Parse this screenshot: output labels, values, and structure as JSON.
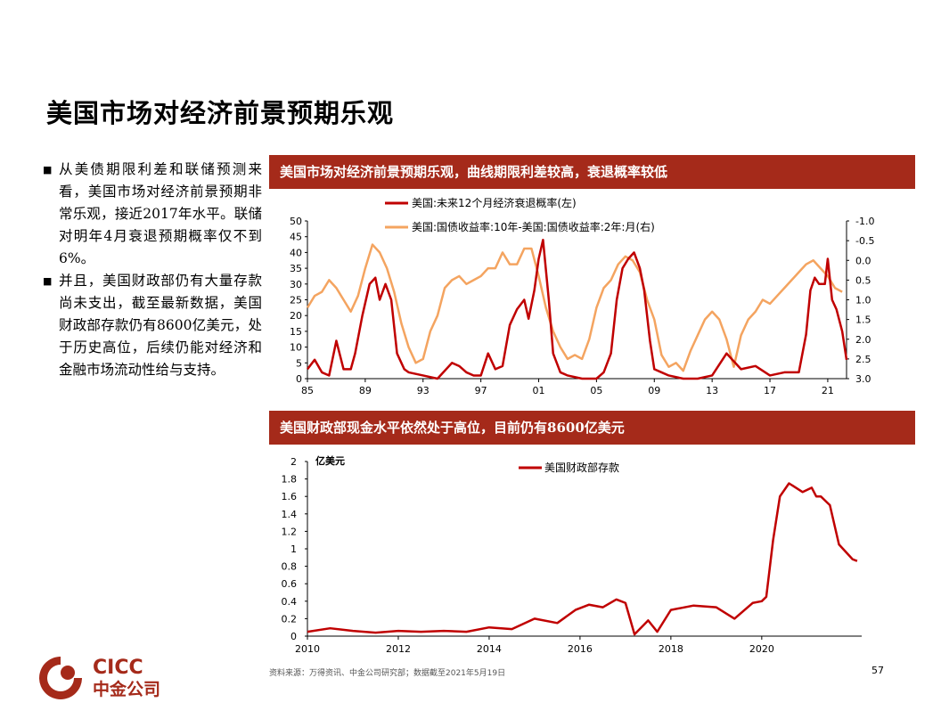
{
  "page": {
    "title": "美国市场对经济前景预期乐观",
    "bullets": [
      "从美债期限利差和联储预测来看，美国市场对经济前景预期非常乐观，接近2017年水平。联储对明年4月衰退预期概率仅不到6%。",
      "并且，美国财政部仍有大量存款尚未支出，截至最新数据，美国财政部存款仍有8600亿美元，处于历史高位，后续仍能对经济和金融市场流动性给与支持。"
    ],
    "bullet_mark": "■",
    "source": "资料来源：万得资讯、中金公司研究部；数据截至2021年5月19日",
    "page_number": "57",
    "logo": {
      "text_en": "CICC",
      "text_cn": "中金公司"
    },
    "colors": {
      "header_bg": "#a52a1a",
      "dark_red": "#c00000",
      "orange": "#f4a460"
    }
  },
  "chart_data": [
    {
      "type": "line",
      "title": "美国市场对经济前景预期乐观，曲线期限利差较高，衰退概率较低",
      "x_tick_labels": [
        "85",
        "89",
        "93",
        "97",
        "01",
        "05",
        "09",
        "13",
        "17",
        "21"
      ],
      "x_ticks_year": [
        1985,
        1989,
        1993,
        1997,
        2001,
        2005,
        2009,
        2013,
        2017,
        2021
      ],
      "xlim": [
        1985,
        2022.3
      ],
      "ylim_left": [
        0,
        50
      ],
      "y_left_ticks": [
        0,
        5,
        10,
        15,
        20,
        25,
        30,
        35,
        40,
        45,
        50
      ],
      "ylim_right": [
        3.0,
        -1.0
      ],
      "y_right_ticks": [
        "-1.0",
        "-0.5",
        "0.0",
        "0.5",
        "1.0",
        "1.5",
        "2.0",
        "2.5",
        "3.0"
      ],
      "y_right_tick_values": [
        -1.0,
        -0.5,
        0.0,
        0.5,
        1.0,
        1.5,
        2.0,
        2.5,
        3.0
      ],
      "series": [
        {
          "name": "美国:未来12个月经济衰退概率(左)",
          "axis": "left",
          "color": "#c00000",
          "x": [
            1985,
            1985.5,
            1986,
            1986.5,
            1987,
            1987.5,
            1988,
            1988.3,
            1988.8,
            1989.3,
            1989.7,
            1990,
            1990.4,
            1990.8,
            1991.2,
            1991.7,
            1992,
            1993,
            1994,
            1995,
            1995.5,
            1996,
            1996.5,
            1997,
            1997.5,
            1998,
            1998.5,
            1999,
            1999.5,
            2000,
            2000.3,
            2000.7,
            2001,
            2001.3,
            2001.7,
            2002,
            2002.5,
            2003,
            2004,
            2005,
            2005.5,
            2006,
            2006.4,
            2006.8,
            2007.2,
            2007.6,
            2008,
            2008.3,
            2008.7,
            2009,
            2009.5,
            2010,
            2011,
            2012,
            2013,
            2014,
            2015,
            2016,
            2017,
            2018,
            2019,
            2019.5,
            2019.8,
            2020.1,
            2020.4,
            2020.8,
            2021,
            2021.3,
            2021.6,
            2022,
            2022.3
          ],
          "values": [
            3,
            6,
            2,
            1,
            12,
            3,
            3,
            8,
            20,
            30,
            32,
            25,
            30,
            25,
            8,
            3,
            2,
            1,
            0,
            5,
            4,
            2,
            1,
            1,
            8,
            3,
            4,
            17,
            22,
            25,
            19,
            28,
            38,
            44,
            25,
            8,
            2,
            1,
            0,
            0,
            2,
            8,
            25,
            35,
            38,
            40,
            35,
            28,
            12,
            3,
            2,
            1,
            0,
            0,
            1,
            8,
            3,
            4,
            1,
            2,
            2,
            14,
            28,
            32,
            30,
            30,
            38,
            25,
            22,
            15,
            6
          ]
        },
        {
          "name": "美国:国债收益率:10年-美国:国债收益率:2年:月(右)",
          "axis": "right",
          "color": "#f4a460",
          "x": [
            1985,
            1985.5,
            1986,
            1986.5,
            1987,
            1987.5,
            1988,
            1988.5,
            1989,
            1989.5,
            1990,
            1990.5,
            1991,
            1991.5,
            1992,
            1992.5,
            1993,
            1993.5,
            1994,
            1994.5,
            1995,
            1995.5,
            1996,
            1996.5,
            1997,
            1997.5,
            1998,
            1998.5,
            1999,
            1999.5,
            2000,
            2000.5,
            2001,
            2001.5,
            2002,
            2002.5,
            2003,
            2003.5,
            2004,
            2004.5,
            2005,
            2005.5,
            2006,
            2006.5,
            2007,
            2007.5,
            2008,
            2008.5,
            2009,
            2009.5,
            2010,
            2010.5,
            2011,
            2011.5,
            2012,
            2012.5,
            2013,
            2013.5,
            2014,
            2014.5,
            2015,
            2015.5,
            2016,
            2016.5,
            2017,
            2017.5,
            2018,
            2018.5,
            2019,
            2019.5,
            2020,
            2020.5,
            2021,
            2021.5,
            2022
          ],
          "values": [
            1.2,
            0.9,
            0.8,
            0.5,
            0.7,
            1.0,
            1.3,
            0.9,
            0.2,
            -0.4,
            -0.2,
            0.2,
            0.8,
            1.6,
            2.2,
            2.6,
            2.5,
            1.8,
            1.4,
            0.7,
            0.5,
            0.4,
            0.6,
            0.5,
            0.4,
            0.2,
            0.2,
            -0.2,
            0.1,
            0.1,
            -0.3,
            -0.3,
            0.4,
            1.2,
            1.8,
            2.2,
            2.5,
            2.4,
            2.5,
            2.0,
            1.2,
            0.7,
            0.5,
            0.1,
            -0.1,
            0.0,
            0.3,
            1.0,
            1.5,
            2.4,
            2.7,
            2.6,
            2.8,
            2.3,
            1.9,
            1.5,
            1.3,
            1.5,
            2.0,
            2.7,
            1.9,
            1.5,
            1.3,
            1.0,
            1.1,
            0.9,
            0.7,
            0.5,
            0.3,
            0.1,
            0.0,
            0.2,
            0.4,
            0.7,
            0.8
          ]
        }
      ]
    },
    {
      "type": "line",
      "title": "美国财政部现金水平依然处于高位，目前仍有8600亿美元",
      "ylabel": "亿美元",
      "x_tick_labels": [
        "2010",
        "2012",
        "2014",
        "2016",
        "2018",
        "2020"
      ],
      "x_ticks_year": [
        2010,
        2012,
        2014,
        2016,
        2018,
        2020
      ],
      "xlim": [
        2010,
        2022.2
      ],
      "ylim": [
        0,
        2
      ],
      "y_ticks": [
        "0",
        "0.2",
        "0.4",
        "0.6",
        "0.8",
        "1",
        "1.2",
        "1.4",
        "1.6",
        "1.8",
        "2"
      ],
      "y_tick_values": [
        0,
        0.2,
        0.4,
        0.6,
        0.8,
        1,
        1.2,
        1.4,
        1.6,
        1.8,
        2
      ],
      "series": [
        {
          "name": "美国财政部存款",
          "color": "#c00000",
          "x": [
            2010,
            2010.5,
            2011,
            2011.5,
            2012,
            2012.5,
            2013,
            2013.5,
            2014,
            2014.5,
            2015,
            2015.5,
            2015.9,
            2016.2,
            2016.5,
            2016.8,
            2017,
            2017.2,
            2017.5,
            2017.7,
            2018,
            2018.5,
            2019,
            2019.4,
            2019.8,
            2020.0,
            2020.1,
            2020.25,
            2020.4,
            2020.6,
            2020.9,
            2021.1,
            2021.2,
            2021.3,
            2021.5,
            2021.7,
            2022,
            2022.1
          ],
          "values": [
            0.05,
            0.09,
            0.06,
            0.04,
            0.06,
            0.05,
            0.06,
            0.05,
            0.1,
            0.08,
            0.2,
            0.15,
            0.3,
            0.36,
            0.33,
            0.42,
            0.38,
            0.02,
            0.18,
            0.05,
            0.3,
            0.35,
            0.33,
            0.2,
            0.38,
            0.4,
            0.45,
            1.1,
            1.6,
            1.75,
            1.65,
            1.7,
            1.6,
            1.6,
            1.5,
            1.05,
            0.88,
            0.86
          ]
        }
      ]
    }
  ]
}
